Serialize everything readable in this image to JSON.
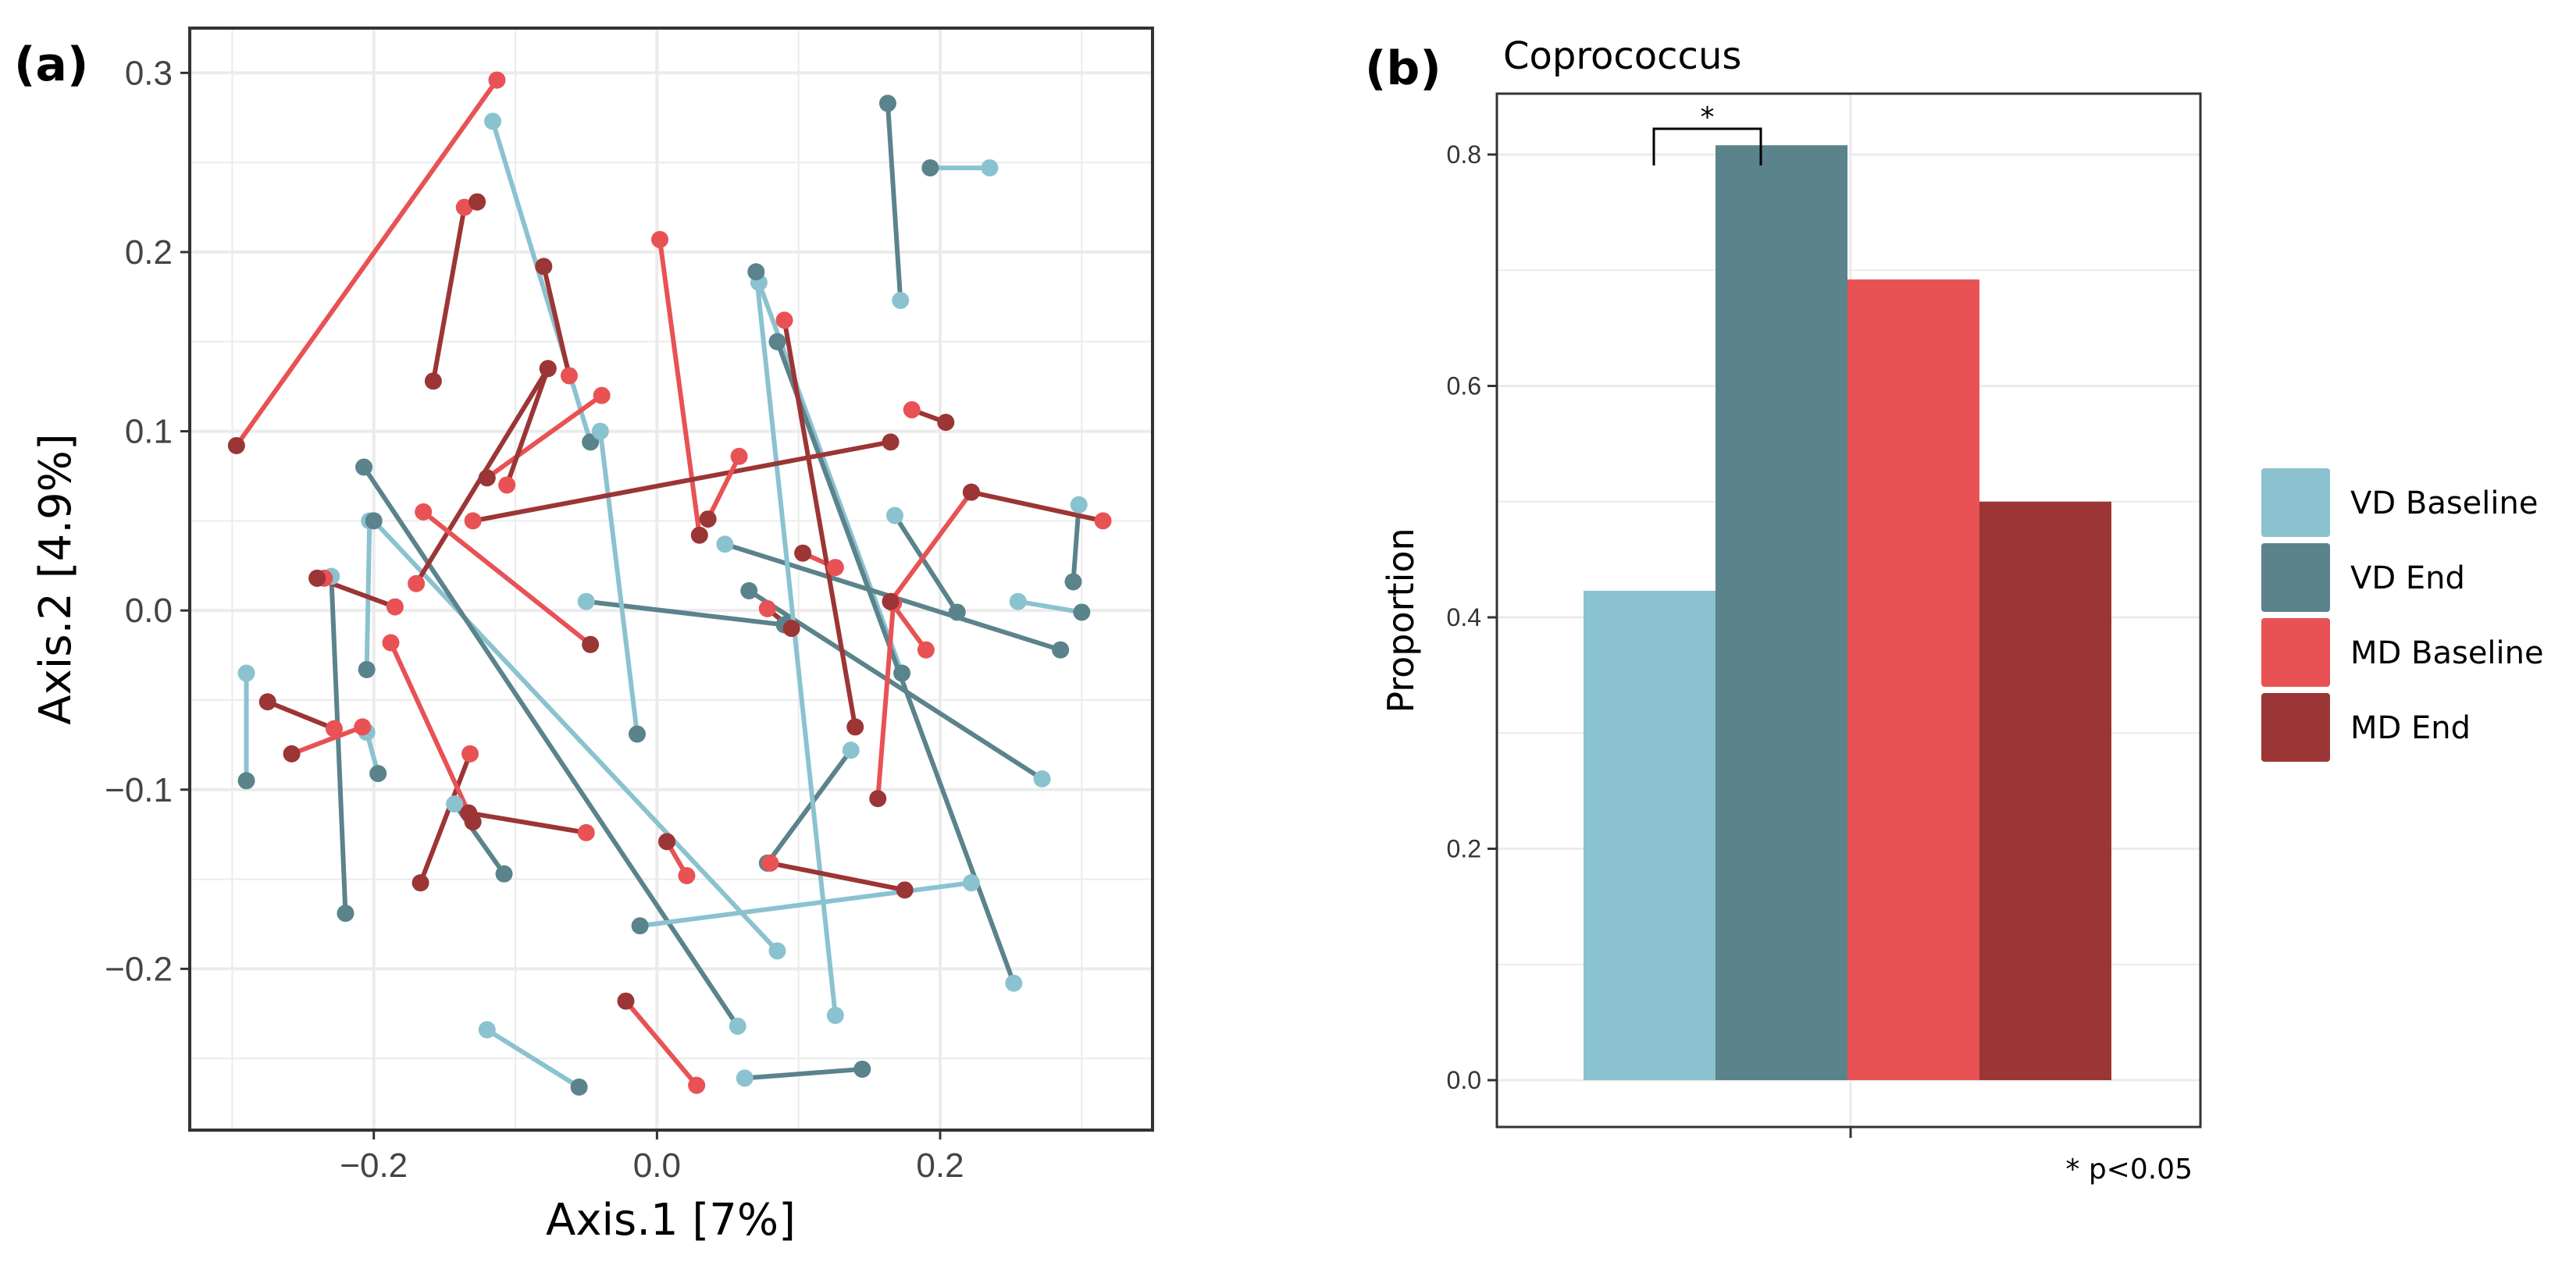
{
  "colors": {
    "vd_baseline": "#8bc2d0",
    "vd_end": "#5a838b",
    "md_baseline": "#e85254",
    "md_end": "#9c3535",
    "grid": "#ebebeb",
    "frame": "#333333"
  },
  "panel_a": {
    "label": "(a)",
    "x_tick_labels": [
      "−0.2",
      "0.0",
      "0.2"
    ],
    "y_tick_labels": [
      "−0.2",
      "−0.1",
      "0.0",
      "0.1",
      "0.2",
      "0.3"
    ]
  },
  "panel_b": {
    "label": "(b)",
    "significance_mark": "*",
    "footnote": "* p<0.05",
    "legend": [
      {
        "label": "VD  Baseline",
        "color_key": "vd_baseline"
      },
      {
        "label": "VD  End",
        "color_key": "vd_end"
      },
      {
        "label": "MD  Baseline",
        "color_key": "md_baseline"
      },
      {
        "label": "MD  End",
        "color_key": "md_end"
      }
    ]
  },
  "chart_data": [
    {
      "type": "scatter",
      "title": "",
      "xlabel": "Axis.1   [7%]",
      "ylabel": "Axis.2   [4.9%]",
      "xlim": [
        -0.33,
        0.35
      ],
      "ylim": [
        -0.29,
        0.325
      ],
      "xticks": [
        -0.2,
        0.0,
        0.2
      ],
      "yticks": [
        -0.2,
        -0.1,
        0.0,
        0.1,
        0.2,
        0.3
      ],
      "grid": true,
      "note": "Paired samples connected by lines; point 1 = Baseline, point 2 = End",
      "series": [
        {
          "name": "VD",
          "pairs": [
            [
              [
                -0.116,
                0.273
              ],
              [
                -0.047,
                0.094
              ]
            ],
            [
              [
                -0.05,
                0.005
              ],
              [
                0.09,
                -0.008
              ]
            ],
            [
              [
                0.072,
                0.183
              ],
              [
                0.173,
                -0.035
              ]
            ],
            [
              [
                0.168,
                0.053
              ],
              [
                0.212,
                -0.001
              ]
            ],
            [
              [
                0.235,
                0.247
              ],
              [
                0.193,
                0.247
              ]
            ],
            [
              [
                0.172,
                0.173
              ],
              [
                0.163,
                0.283
              ]
            ],
            [
              [
                -0.203,
                0.05
              ],
              [
                -0.205,
                -0.033
              ]
            ],
            [
              [
                0.048,
                0.037
              ],
              [
                0.285,
                -0.022
              ]
            ],
            [
              [
                -0.29,
                -0.035
              ],
              [
                -0.29,
                -0.095
              ]
            ],
            [
              [
                -0.23,
                0.019
              ],
              [
                -0.22,
                -0.169
              ]
            ],
            [
              [
                -0.205,
                -0.068
              ],
              [
                -0.197,
                -0.091
              ]
            ],
            [
              [
                -0.143,
                -0.108
              ],
              [
                -0.108,
                -0.147
              ]
            ],
            [
              [
                -0.04,
                0.1
              ],
              [
                -0.014,
                -0.069
              ]
            ],
            [
              [
                0.137,
                -0.078
              ],
              [
                0.078,
                -0.141
              ]
            ],
            [
              [
                0.255,
                0.005
              ],
              [
                0.3,
                -0.001
              ]
            ],
            [
              [
                0.298,
                0.059
              ],
              [
                0.294,
                0.016
              ]
            ],
            [
              [
                0.085,
                -0.19
              ],
              [
                -0.2,
                0.05
              ]
            ],
            [
              [
                0.057,
                -0.232
              ],
              [
                -0.207,
                0.08
              ]
            ],
            [
              [
                0.222,
                -0.152
              ],
              [
                -0.012,
                -0.176
              ]
            ],
            [
              [
                0.272,
                -0.094
              ],
              [
                0.065,
                0.011
              ]
            ],
            [
              [
                -0.12,
                -0.234
              ],
              [
                -0.055,
                -0.266
              ]
            ],
            [
              [
                0.062,
                -0.261
              ],
              [
                0.145,
                -0.256
              ]
            ],
            [
              [
                0.126,
                -0.226
              ],
              [
                0.07,
                0.189
              ]
            ],
            [
              [
                0.252,
                -0.208
              ],
              [
                0.085,
                0.15
              ]
            ]
          ]
        },
        {
          "name": "MD",
          "pairs": [
            [
              [
                -0.113,
                0.296
              ],
              [
                -0.297,
                0.092
              ]
            ],
            [
              [
                -0.136,
                0.225
              ],
              [
                -0.158,
                0.128
              ]
            ],
            [
              [
                -0.127,
                0.228
              ],
              [
                -0.127,
                0.228
              ]
            ],
            [
              [
                -0.062,
                0.131
              ],
              [
                -0.08,
                0.192
              ]
            ],
            [
              [
                -0.039,
                0.12
              ],
              [
                -0.12,
                0.074
              ]
            ],
            [
              [
                -0.106,
                0.07
              ],
              [
                -0.077,
                0.135
              ]
            ],
            [
              [
                0.002,
                0.207
              ],
              [
                0.03,
                0.042
              ]
            ],
            [
              [
                -0.17,
                0.015
              ],
              [
                -0.077,
                0.135
              ]
            ],
            [
              [
                -0.165,
                0.055
              ],
              [
                -0.047,
                -0.019
              ]
            ],
            [
              [
                -0.13,
                0.05
              ],
              [
                0.165,
                0.094
              ]
            ],
            [
              [
                0.058,
                0.086
              ],
              [
                0.036,
                0.051
              ]
            ],
            [
              [
                0.18,
                0.112
              ],
              [
                0.204,
                0.105
              ]
            ],
            [
              [
                0.165,
                0.005
              ],
              [
                0.222,
                0.066
              ]
            ],
            [
              [
                0.315,
                0.05
              ],
              [
                0.222,
                0.066
              ]
            ],
            [
              [
                0.126,
                0.024
              ],
              [
                0.103,
                0.032
              ]
            ],
            [
              [
                0.078,
                0.001
              ],
              [
                0.095,
                -0.01
              ]
            ],
            [
              [
                0.167,
                0.004
              ],
              [
                0.156,
                -0.105
              ]
            ],
            [
              [
                0.09,
                0.162
              ],
              [
                0.14,
                -0.065
              ]
            ],
            [
              [
                0.19,
                -0.022
              ],
              [
                0.165,
                0.005
              ]
            ],
            [
              [
                -0.185,
                0.002
              ],
              [
                -0.24,
                0.018
              ]
            ],
            [
              [
                -0.235,
                0.018
              ],
              [
                -0.24,
                0.018
              ]
            ],
            [
              [
                -0.228,
                -0.066
              ],
              [
                -0.275,
                -0.051
              ]
            ],
            [
              [
                -0.208,
                -0.065
              ],
              [
                -0.258,
                -0.08
              ]
            ],
            [
              [
                -0.132,
                -0.08
              ],
              [
                -0.167,
                -0.152
              ]
            ],
            [
              [
                -0.188,
                -0.018
              ],
              [
                -0.13,
                -0.118
              ]
            ],
            [
              [
                -0.05,
                -0.124
              ],
              [
                -0.133,
                -0.113
              ]
            ],
            [
              [
                0.021,
                -0.148
              ],
              [
                0.007,
                -0.129
              ]
            ],
            [
              [
                0.08,
                -0.141
              ],
              [
                0.175,
                -0.156
              ]
            ],
            [
              [
                0.028,
                -0.265
              ],
              [
                -0.022,
                -0.218
              ]
            ]
          ]
        }
      ]
    },
    {
      "type": "bar",
      "title": "Coprococcus",
      "xlabel": "",
      "ylabel": "Proportion",
      "ylim": [
        0,
        0.84
      ],
      "yticks": [
        0.0,
        0.2,
        0.4,
        0.6,
        0.8
      ],
      "y_tick_labels": [
        "0.0",
        "0.2",
        "0.4",
        "0.6",
        "0.8"
      ],
      "categories": [
        "VD  Baseline",
        "VD  End",
        "MD  Baseline",
        "MD  End"
      ],
      "values": [
        0.423,
        0.808,
        0.692,
        0.5
      ],
      "grid": true,
      "legend_position": "right",
      "annotations": [
        {
          "text": "*",
          "between": [
            "VD  Baseline",
            "VD  End"
          ]
        },
        {
          "text": "* p<0.05",
          "position": "bottom-right"
        }
      ]
    }
  ]
}
